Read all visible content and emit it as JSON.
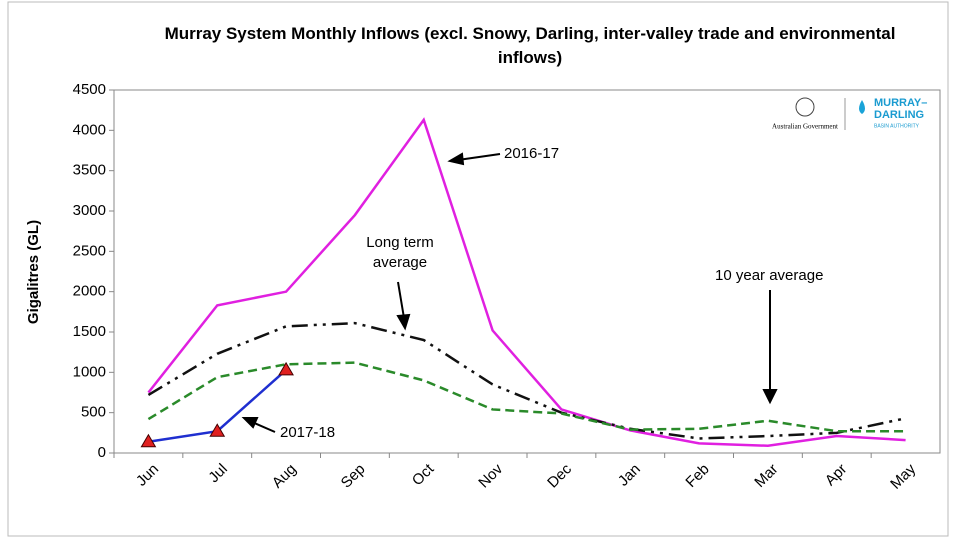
{
  "chart_data": {
    "type": "line",
    "title": "Murray System Monthly Inflows (excl. Snowy, Darling, inter-valley trade and environmental inflows)",
    "y_label": "Gigalitres (GL)",
    "categories": [
      "Jun",
      "Jul",
      "Aug",
      "Sep",
      "Oct",
      "Nov",
      "Dec",
      "Jan",
      "Feb",
      "Mar",
      "Apr",
      "May"
    ],
    "ylim": [
      0,
      4500
    ],
    "yticks": [
      0,
      500,
      1000,
      1500,
      2000,
      2500,
      3000,
      3500,
      4000,
      4500
    ],
    "grid": false,
    "series": [
      {
        "name": "2016-17",
        "color": "#e020e0",
        "dash": "solid",
        "values": [
          750,
          1830,
          2000,
          2950,
          4130,
          1520,
          540,
          280,
          120,
          90,
          210,
          160
        ]
      },
      {
        "name": "Long term average",
        "color": "#111111",
        "dash": "dash-dot-dot",
        "values": [
          720,
          1230,
          1570,
          1610,
          1400,
          850,
          500,
          300,
          180,
          210,
          250,
          430
        ]
      },
      {
        "name": "10 year average",
        "color": "#2a8a2a",
        "dash": "dashed",
        "values": [
          420,
          940,
          1100,
          1120,
          900,
          540,
          490,
          290,
          300,
          400,
          270,
          270
        ]
      },
      {
        "name": "2017-18",
        "color": "#1f2fd0",
        "dash": "solid",
        "marker": "triangle",
        "marker_color": "#e02020",
        "values": [
          140,
          270,
          1030,
          null,
          null,
          null,
          null,
          null,
          null,
          null,
          null,
          null
        ]
      }
    ],
    "logos": {
      "left": "Australian Government",
      "right_top": "MURRAY–",
      "right_mid": "DARLING",
      "right_bottom": "BASIN AUTHORITY"
    }
  }
}
